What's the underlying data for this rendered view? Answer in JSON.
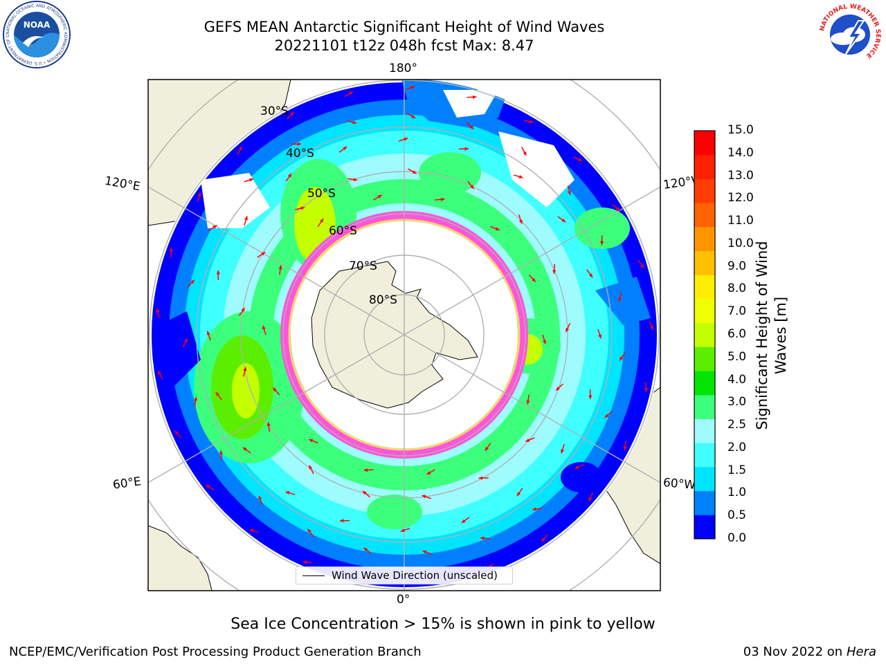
{
  "header": {
    "title_line1": "GEFS MEAN Antarctic Significant Height of Wind Waves",
    "title_line2": "20221101 t12z 048h fcst   Max: 8.47"
  },
  "logos": {
    "left": {
      "name": "noaa-logo",
      "text": "NOAA",
      "ring_text": "NATIONAL OCEANIC AND ATMOSPHERIC ADMINISTRATION • U.S. DEPARTMENT OF COMMERCE"
    },
    "right": {
      "name": "nws-logo",
      "ring_text": "NATIONAL WEATHER SERVICE"
    }
  },
  "map": {
    "projection": "south-polar-stereographic",
    "center_lon_label": "180°",
    "bottom_lon_label": "0°",
    "lon_labels": {
      "upper_left": "120°E",
      "upper_right": "120°W",
      "lower_left": "60°E",
      "lower_right": "60°W"
    },
    "lat_labels": [
      "30°S",
      "40°S",
      "50°S",
      "60°S",
      "70°S",
      "80°S"
    ],
    "colors": {
      "ocean_missing": "#ffffff",
      "land": "#efefdb",
      "gridline": "#b0b0b0",
      "wave_direction_arrows": "#ff0000",
      "sea_ice_edge": "#ff55dd"
    },
    "legend": {
      "label": "Wind Wave Direction (unscaled)"
    }
  },
  "colorbar": {
    "label": "Significant Height of Wind Waves [m]",
    "ticks": [
      "0.0",
      "0.5",
      "1.0",
      "1.5",
      "2.0",
      "2.5",
      "3.0",
      "4.0",
      "5.0",
      "6.0",
      "7.0",
      "8.0",
      "9.0",
      "10.0",
      "11.0",
      "12.0",
      "13.0",
      "14.0",
      "15.0"
    ],
    "colors": [
      "#0000ff",
      "#0080ff",
      "#00e5ff",
      "#40ffff",
      "#9efcff",
      "#3cff7c",
      "#00e600",
      "#5cee00",
      "#c4ff00",
      "#eeff00",
      "#ffee00",
      "#ffc000",
      "#ff9600",
      "#ff6400",
      "#ff3c00",
      "#ff2000",
      "#ff0000"
    ]
  },
  "note": "Sea Ice Concentration > 15% is shown in pink to yellow",
  "footer": {
    "left": "NCEP/EMC/Verification Post Processing Product Generation Branch",
    "right_date": "03 Nov 2022 on",
    "right_host": "Hera"
  }
}
